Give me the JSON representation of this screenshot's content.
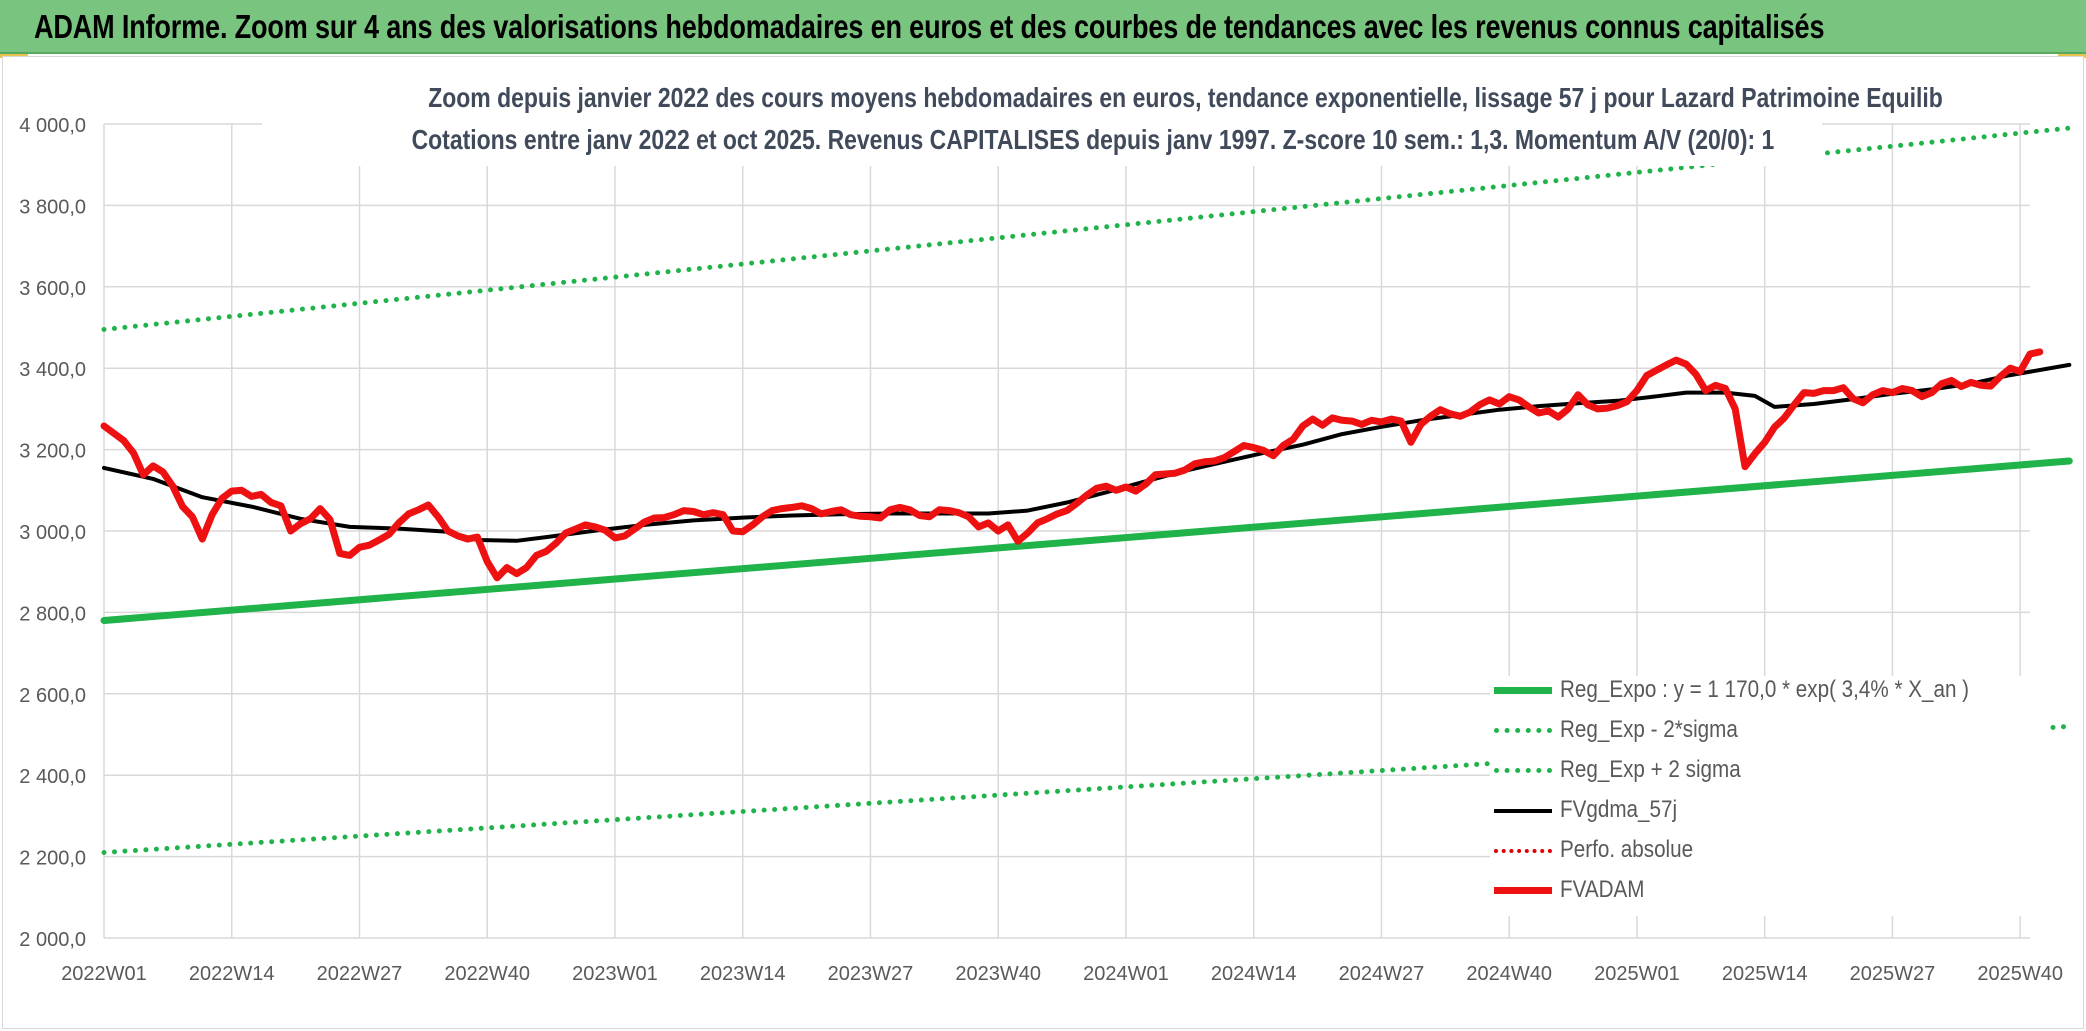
{
  "header": {
    "title": "ADAM Informe. Zoom sur 4 ans des valorisations hebdomadaires en euros et des courbes de tendances avec les revenus connus capitalisés",
    "background": "#79c47e"
  },
  "chart_data": {
    "type": "line",
    "title_line1": "Zoom depuis janvier 2022 des cours moyens hebdomadaires en euros, tendance exponentielle, lissage 57 j pour Lazard Patrimoine Equilib",
    "title_line2": "Cotations entre janv 2022 et oct 2025. Revenus CAPITALISES depuis janv 1997. Z-score 10 sem.: 1,3. Momentum A/V (20/0): 1",
    "xlabel": "",
    "ylabel": "",
    "ylim": [
      2000,
      4000
    ],
    "yticks": [
      "2 000,0",
      "2 200,0",
      "2 400,0",
      "2 600,0",
      "2 800,0",
      "3 000,0",
      "3 200,0",
      "3 400,0",
      "3 600,0",
      "3 800,0",
      "4 000,0"
    ],
    "x_range_weeks": [
      0,
      196
    ],
    "xticks": [
      {
        "label": "2022W01",
        "week": 0
      },
      {
        "label": "2022W14",
        "week": 13
      },
      {
        "label": "2022W27",
        "week": 26
      },
      {
        "label": "2022W40",
        "week": 39
      },
      {
        "label": "2023W01",
        "week": 52
      },
      {
        "label": "2023W14",
        "week": 65
      },
      {
        "label": "2023W27",
        "week": 78
      },
      {
        "label": "2023W40",
        "week": 91
      },
      {
        "label": "2024W01",
        "week": 104
      },
      {
        "label": "2024W14",
        "week": 117
      },
      {
        "label": "2024W27",
        "week": 130
      },
      {
        "label": "2024W40",
        "week": 143
      },
      {
        "label": "2025W01",
        "week": 156
      },
      {
        "label": "2025W14",
        "week": 169
      },
      {
        "label": "2025W27",
        "week": 182
      },
      {
        "label": "2025W40",
        "week": 195
      }
    ],
    "grid": true,
    "legend_position": "bottom-right",
    "series": [
      {
        "name": "Reg_Expo : y = 1 170,0 * exp( 3,4% * X_an )",
        "color": "#1fb34a",
        "style": "solid",
        "width": 7,
        "points": [
          [
            0,
            2780
          ],
          [
            200,
            3172
          ]
        ]
      },
      {
        "name": "Reg_Exp - 2*sigma",
        "color": "#1fb34a",
        "style": "dotted",
        "width": 5,
        "points": [
          [
            0,
            2210
          ],
          [
            200,
            2520
          ]
        ]
      },
      {
        "name": "Reg_Exp + 2 sigma",
        "color": "#1fb34a",
        "style": "dotted",
        "width": 5,
        "points": [
          [
            0,
            3495
          ],
          [
            200,
            3990
          ]
        ]
      },
      {
        "name": "FVgdma_57j",
        "color": "#000000",
        "style": "solid",
        "width": 4,
        "points": [
          [
            0,
            3155
          ],
          [
            5,
            3128
          ],
          [
            10,
            3083
          ],
          [
            15,
            3060
          ],
          [
            20,
            3030
          ],
          [
            25,
            3010
          ],
          [
            30,
            3006
          ],
          [
            35,
            2998
          ],
          [
            38,
            2978
          ],
          [
            42,
            2976
          ],
          [
            45,
            2985
          ],
          [
            50,
            3001
          ],
          [
            55,
            3015
          ],
          [
            60,
            3026
          ],
          [
            65,
            3033
          ],
          [
            70,
            3038
          ],
          [
            75,
            3041
          ],
          [
            80,
            3043
          ],
          [
            85,
            3043
          ],
          [
            90,
            3043
          ],
          [
            94,
            3050
          ],
          [
            98,
            3070
          ],
          [
            102,
            3095
          ],
          [
            106,
            3122
          ],
          [
            110,
            3148
          ],
          [
            114,
            3170
          ],
          [
            118,
            3192
          ],
          [
            122,
            3212
          ],
          [
            126,
            3238
          ],
          [
            130,
            3256
          ],
          [
            134,
            3272
          ],
          [
            138,
            3285
          ],
          [
            142,
            3298
          ],
          [
            146,
            3307
          ],
          [
            150,
            3314
          ],
          [
            154,
            3320
          ],
          [
            158,
            3331
          ],
          [
            161,
            3340
          ],
          [
            165,
            3340
          ],
          [
            168,
            3332
          ],
          [
            170,
            3305
          ],
          [
            174,
            3312
          ],
          [
            178,
            3324
          ],
          [
            182,
            3337
          ],
          [
            186,
            3348
          ],
          [
            190,
            3362
          ],
          [
            194,
            3383
          ],
          [
            200,
            3408
          ]
        ]
      },
      {
        "name": "Perfo. absolue",
        "color": "#e00000",
        "style": "dotted",
        "width": 4,
        "points": []
      },
      {
        "name": "FVADAM",
        "color": "#ee1111",
        "style": "solid",
        "width": 7,
        "points": [
          [
            0,
            3258
          ],
          [
            2,
            3222
          ],
          [
            3,
            3192
          ],
          [
            4,
            3138
          ],
          [
            5,
            3160
          ],
          [
            6,
            3145
          ],
          [
            7,
            3110
          ],
          [
            8,
            3060
          ],
          [
            9,
            3035
          ],
          [
            10,
            2980
          ],
          [
            11,
            3040
          ],
          [
            12,
            3080
          ],
          [
            13,
            3098
          ],
          [
            14,
            3100
          ],
          [
            15,
            3085
          ],
          [
            16,
            3090
          ],
          [
            17,
            3070
          ],
          [
            18,
            3062
          ],
          [
            19,
            3000
          ],
          [
            20,
            3018
          ],
          [
            21,
            3030
          ],
          [
            22,
            3055
          ],
          [
            23,
            3028
          ],
          [
            24,
            2945
          ],
          [
            25,
            2940
          ],
          [
            26,
            2960
          ],
          [
            27,
            2965
          ],
          [
            28,
            2978
          ],
          [
            29,
            2992
          ],
          [
            30,
            3020
          ],
          [
            31,
            3042
          ],
          [
            32,
            3052
          ],
          [
            33,
            3064
          ],
          [
            34,
            3035
          ],
          [
            35,
            3000
          ],
          [
            36,
            2988
          ],
          [
            37,
            2980
          ],
          [
            38,
            2985
          ],
          [
            39,
            2925
          ],
          [
            40,
            2885
          ],
          [
            41,
            2910
          ],
          [
            42,
            2895
          ],
          [
            43,
            2910
          ],
          [
            44,
            2940
          ],
          [
            45,
            2950
          ],
          [
            46,
            2970
          ],
          [
            47,
            2995
          ],
          [
            48,
            3005
          ],
          [
            49,
            3015
          ],
          [
            50,
            3010
          ],
          [
            51,
            3002
          ],
          [
            52,
            2983
          ],
          [
            53,
            2988
          ],
          [
            54,
            3005
          ],
          [
            55,
            3022
          ],
          [
            56,
            3032
          ],
          [
            57,
            3033
          ],
          [
            58,
            3040
          ],
          [
            59,
            3050
          ],
          [
            60,
            3048
          ],
          [
            61,
            3040
          ],
          [
            62,
            3045
          ],
          [
            63,
            3040
          ],
          [
            64,
            3000
          ],
          [
            65,
            2998
          ],
          [
            66,
            3015
          ],
          [
            67,
            3035
          ],
          [
            68,
            3050
          ],
          [
            69,
            3055
          ],
          [
            70,
            3058
          ],
          [
            71,
            3062
          ],
          [
            72,
            3055
          ],
          [
            73,
            3042
          ],
          [
            74,
            3048
          ],
          [
            75,
            3052
          ],
          [
            76,
            3040
          ],
          [
            77,
            3036
          ],
          [
            78,
            3035
          ],
          [
            79,
            3032
          ],
          [
            80,
            3052
          ],
          [
            81,
            3058
          ],
          [
            82,
            3052
          ],
          [
            83,
            3038
          ],
          [
            84,
            3035
          ],
          [
            85,
            3052
          ],
          [
            86,
            3050
          ],
          [
            87,
            3045
          ],
          [
            88,
            3035
          ],
          [
            89,
            3010
          ],
          [
            90,
            3020
          ],
          [
            91,
            3000
          ],
          [
            92,
            3015
          ],
          [
            93,
            2975
          ],
          [
            94,
            2995
          ],
          [
            95,
            3020
          ],
          [
            96,
            3030
          ],
          [
            97,
            3042
          ],
          [
            98,
            3050
          ],
          [
            99,
            3068
          ],
          [
            100,
            3088
          ],
          [
            101,
            3105
          ],
          [
            102,
            3110
          ],
          [
            103,
            3100
          ],
          [
            104,
            3108
          ],
          [
            105,
            3098
          ],
          [
            106,
            3115
          ],
          [
            107,
            3138
          ],
          [
            108,
            3140
          ],
          [
            109,
            3142
          ],
          [
            110,
            3150
          ],
          [
            111,
            3165
          ],
          [
            112,
            3170
          ],
          [
            113,
            3172
          ],
          [
            114,
            3180
          ],
          [
            115,
            3195
          ],
          [
            116,
            3210
          ],
          [
            117,
            3205
          ],
          [
            118,
            3198
          ],
          [
            119,
            3185
          ],
          [
            120,
            3210
          ],
          [
            121,
            3225
          ],
          [
            122,
            3258
          ],
          [
            123,
            3275
          ],
          [
            124,
            3260
          ],
          [
            125,
            3278
          ],
          [
            126,
            3272
          ],
          [
            127,
            3270
          ],
          [
            128,
            3262
          ],
          [
            129,
            3272
          ],
          [
            130,
            3268
          ],
          [
            131,
            3275
          ],
          [
            132,
            3270
          ],
          [
            133,
            3218
          ],
          [
            134,
            3262
          ],
          [
            135,
            3282
          ],
          [
            136,
            3298
          ],
          [
            137,
            3288
          ],
          [
            138,
            3282
          ],
          [
            139,
            3292
          ],
          [
            140,
            3310
          ],
          [
            141,
            3322
          ],
          [
            142,
            3312
          ],
          [
            143,
            3330
          ],
          [
            144,
            3322
          ],
          [
            145,
            3305
          ],
          [
            146,
            3290
          ],
          [
            147,
            3295
          ],
          [
            148,
            3280
          ],
          [
            149,
            3300
          ],
          [
            150,
            3335
          ],
          [
            151,
            3310
          ],
          [
            152,
            3300
          ],
          [
            153,
            3302
          ],
          [
            154,
            3308
          ],
          [
            155,
            3318
          ],
          [
            156,
            3345
          ],
          [
            157,
            3382
          ],
          [
            158,
            3395
          ],
          [
            159,
            3408
          ],
          [
            160,
            3420
          ],
          [
            161,
            3410
          ],
          [
            162,
            3385
          ],
          [
            163,
            3345
          ],
          [
            164,
            3358
          ],
          [
            165,
            3350
          ],
          [
            166,
            3300
          ],
          [
            167,
            3158
          ],
          [
            168,
            3190
          ],
          [
            169,
            3218
          ],
          [
            170,
            3255
          ],
          [
            171,
            3278
          ],
          [
            172,
            3310
          ],
          [
            173,
            3340
          ],
          [
            174,
            3338
          ],
          [
            175,
            3345
          ],
          [
            176,
            3345
          ],
          [
            177,
            3352
          ],
          [
            178,
            3325
          ],
          [
            179,
            3315
          ],
          [
            180,
            3335
          ],
          [
            181,
            3345
          ],
          [
            182,
            3340
          ],
          [
            183,
            3350
          ],
          [
            184,
            3345
          ],
          [
            185,
            3330
          ],
          [
            186,
            3340
          ],
          [
            187,
            3362
          ],
          [
            188,
            3370
          ],
          [
            189,
            3355
          ],
          [
            190,
            3365
          ],
          [
            191,
            3358
          ],
          [
            192,
            3356
          ],
          [
            193,
            3380
          ],
          [
            194,
            3400
          ],
          [
            195,
            3392
          ],
          [
            196,
            3435
          ],
          [
            197,
            3440
          ]
        ]
      }
    ]
  }
}
